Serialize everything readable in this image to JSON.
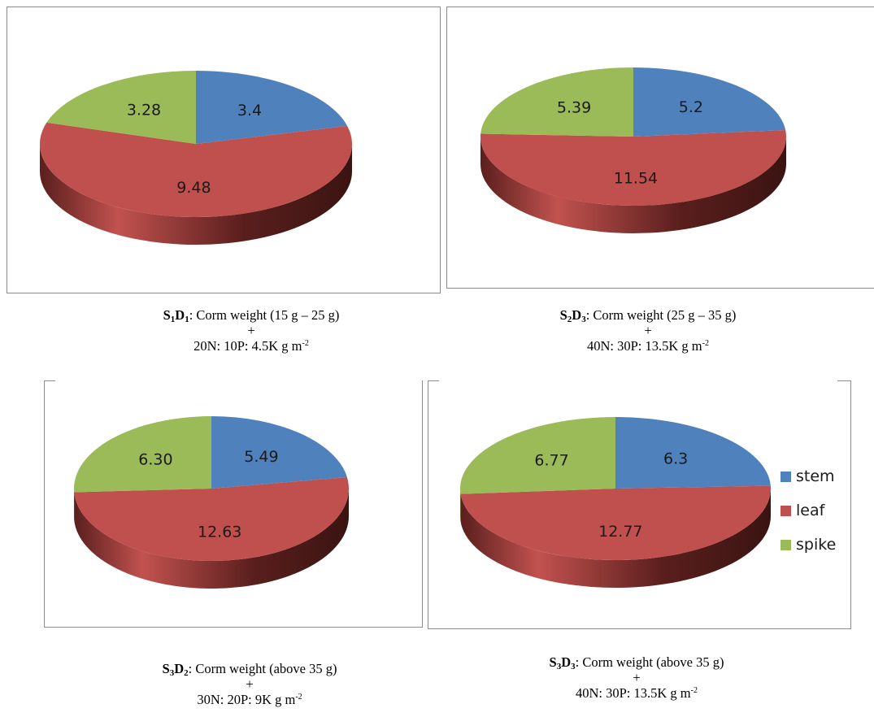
{
  "colors": {
    "stem": "#4F81BD",
    "leaf": "#C0504D",
    "spike": "#9BBB59"
  },
  "legend": {
    "placement": "right",
    "items": [
      "stem",
      "leaf",
      "spike"
    ]
  },
  "chart_data": [
    {
      "type": "pie",
      "categories": [
        "stem",
        "leaf",
        "spike"
      ],
      "values": [
        3.4,
        9.48,
        3.28
      ],
      "labels": [
        "3.4",
        "9.48",
        "3.28"
      ],
      "caption": {
        "code_main_1": "S",
        "code_sub_1": "1",
        "code_main_2": "D",
        "code_sub_2": "1",
        "line1": ": Corm weight (15 g – 25 g)",
        "plus": "+",
        "line3": "20N: 10P: 4.5K g m",
        "line3_sup": "-2"
      }
    },
    {
      "type": "pie",
      "categories": [
        "stem",
        "leaf",
        "spike"
      ],
      "values": [
        5.2,
        11.54,
        5.39
      ],
      "labels": [
        "5.2",
        "11.54",
        "5.39"
      ],
      "caption": {
        "code_main_1": "S",
        "code_sub_1": "2",
        "code_main_2": "D",
        "code_sub_2": "3",
        "line1": ": Corm weight (25 g – 35 g)",
        "plus": "+",
        "line3": "40N: 30P: 13.5K g m",
        "line3_sup": "-2"
      }
    },
    {
      "type": "pie",
      "categories": [
        "stem",
        "leaf",
        "spike"
      ],
      "values": [
        5.49,
        12.63,
        6.3
      ],
      "labels": [
        "5.49",
        "12.63",
        "6.30"
      ],
      "caption": {
        "code_main_1": "S",
        "code_sub_1": "3",
        "code_main_2": "D",
        "code_sub_2": "2",
        "line1": ": Corm weight (above 35 g)",
        "plus": "+",
        "line3": "30N: 20P: 9K g m",
        "line3_sup": "-2"
      }
    },
    {
      "type": "pie",
      "categories": [
        "stem",
        "leaf",
        "spike"
      ],
      "values": [
        6.3,
        12.77,
        6.77
      ],
      "labels": [
        "6.3",
        "12.77",
        "6.77"
      ],
      "caption": {
        "code_main_1": "S",
        "code_sub_1": "3",
        "code_main_2": "D",
        "code_sub_2": "3",
        "line1": ": Corm weight (above 35 g)",
        "plus": "+",
        "line3": "40N: 30P: 13.5K g m",
        "line3_sup": "-2"
      }
    }
  ]
}
